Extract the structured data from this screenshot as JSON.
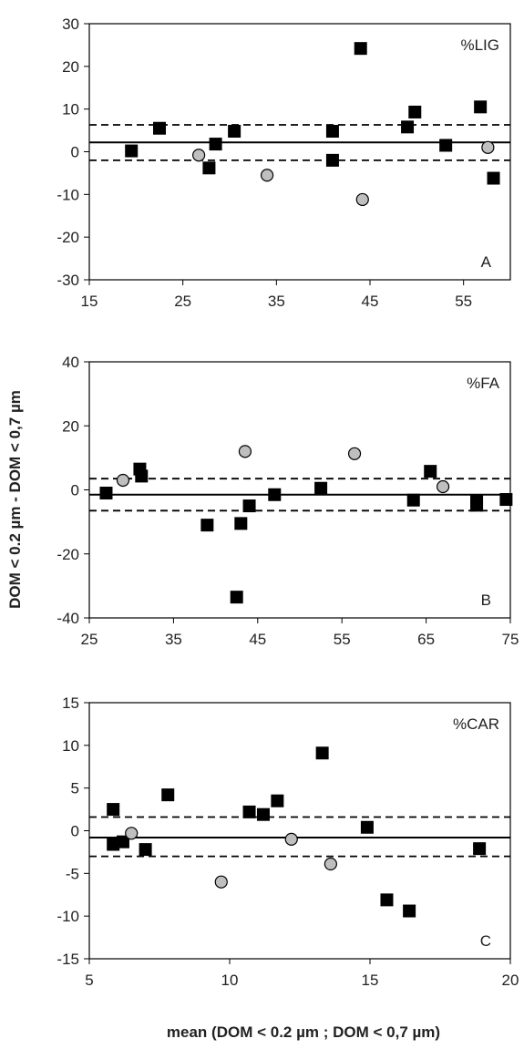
{
  "figure": {
    "ylabel": "DOM < 0.2 µm  -  DOM < 0,7 µm",
    "xlabel": "mean (DOM < 0.2 µm  ;  DOM < 0,7 µm)"
  },
  "chart_data": [
    {
      "type": "scatter",
      "title": "%LIG",
      "panel_label": "A",
      "xlim": [
        15,
        60
      ],
      "ylim": [
        -30,
        30
      ],
      "xticks": [
        15,
        25,
        35,
        45,
        55
      ],
      "yticks": [
        -30,
        -20,
        -10,
        0,
        10,
        20,
        30
      ],
      "grid": false,
      "mean_line": 2.2,
      "limit_lines": [
        6.3,
        -2.0
      ],
      "series": [
        {
          "marker": "square",
          "color": "#000000",
          "points": [
            [
              19.5,
              0.2
            ],
            [
              22.5,
              5.5
            ],
            [
              27.8,
              -3.8
            ],
            [
              28.5,
              1.8
            ],
            [
              30.5,
              4.8
            ],
            [
              41.0,
              4.8
            ],
            [
              41.0,
              -2.0
            ],
            [
              44.0,
              24.2
            ],
            [
              49.0,
              5.8
            ],
            [
              49.8,
              9.3
            ],
            [
              53.1,
              1.5
            ],
            [
              56.8,
              10.5
            ],
            [
              58.2,
              -6.2
            ]
          ]
        },
        {
          "marker": "circle",
          "color": "#bfbfbf",
          "points": [
            [
              26.7,
              -0.8
            ],
            [
              34.0,
              -5.5
            ],
            [
              44.2,
              -11.2
            ],
            [
              57.6,
              1.0
            ]
          ]
        }
      ]
    },
    {
      "type": "scatter",
      "title": "%FA",
      "panel_label": "B",
      "xlim": [
        25,
        75
      ],
      "ylim": [
        -40,
        40
      ],
      "xticks": [
        25,
        35,
        45,
        55,
        65,
        75
      ],
      "yticks": [
        -40,
        -20,
        0,
        20,
        40
      ],
      "grid": false,
      "mean_line": -1.5,
      "limit_lines": [
        3.5,
        -6.5
      ],
      "series": [
        {
          "marker": "square",
          "color": "#000000",
          "points": [
            [
              27.0,
              -1.0
            ],
            [
              31.0,
              6.5
            ],
            [
              31.2,
              4.3
            ],
            [
              39.0,
              -11.0
            ],
            [
              42.5,
              -33.5
            ],
            [
              43.0,
              -10.5
            ],
            [
              44.0,
              -5.0
            ],
            [
              47.0,
              -1.5
            ],
            [
              52.5,
              0.5
            ],
            [
              63.5,
              -3.2
            ],
            [
              65.5,
              5.8
            ],
            [
              71.0,
              -3.5
            ],
            [
              71.0,
              -4.8
            ],
            [
              74.5,
              -3.0
            ]
          ]
        },
        {
          "marker": "circle",
          "color": "#bfbfbf",
          "points": [
            [
              29.0,
              3.0
            ],
            [
              43.5,
              12.0
            ],
            [
              56.5,
              11.3
            ],
            [
              67.0,
              1.0
            ]
          ]
        }
      ]
    },
    {
      "type": "scatter",
      "title": "%CAR",
      "panel_label": "C",
      "xlim": [
        5,
        20
      ],
      "ylim": [
        -15,
        15
      ],
      "xticks": [
        5,
        10,
        15,
        20
      ],
      "yticks": [
        -15,
        -10,
        -5,
        0,
        5,
        10,
        15
      ],
      "grid": false,
      "mean_line": -0.8,
      "limit_lines": [
        1.6,
        -3.0
      ],
      "series": [
        {
          "marker": "square",
          "color": "#000000",
          "points": [
            [
              5.85,
              2.5
            ],
            [
              5.85,
              -1.6
            ],
            [
              6.2,
              -1.3
            ],
            [
              7.0,
              -2.2
            ],
            [
              7.8,
              4.2
            ],
            [
              10.7,
              2.2
            ],
            [
              11.2,
              1.9
            ],
            [
              11.7,
              3.5
            ],
            [
              13.3,
              9.1
            ],
            [
              14.9,
              0.4
            ],
            [
              15.6,
              -8.1
            ],
            [
              16.4,
              -9.4
            ],
            [
              18.9,
              -2.1
            ]
          ]
        },
        {
          "marker": "circle",
          "color": "#bfbfbf",
          "points": [
            [
              6.5,
              -0.3
            ],
            [
              9.7,
              -6.0
            ],
            [
              12.2,
              -1.0
            ],
            [
              13.6,
              -3.9
            ]
          ]
        }
      ]
    }
  ]
}
